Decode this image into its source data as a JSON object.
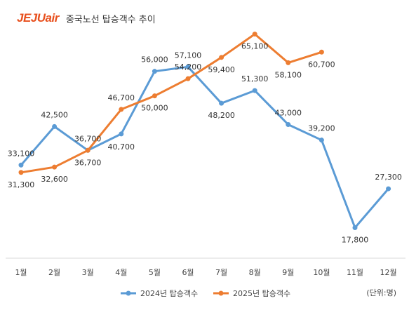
{
  "header": {
    "logo_text": "JEJUair",
    "title": "중국노선 탑승객수 추이"
  },
  "unit_note": "(단위:명)",
  "colors": {
    "logo": "#e8501e",
    "series_2024": "#5b9bd5",
    "series_2025": "#ed7d31",
    "label_text": "#333333",
    "axis_line": "#d9d9d9"
  },
  "chart_data": {
    "type": "line",
    "title": "중국노선 탑승객수 추이",
    "categories": [
      "1월",
      "2월",
      "3월",
      "4월",
      "5월",
      "6월",
      "7월",
      "8월",
      "9월",
      "10월",
      "11월",
      "12월"
    ],
    "series": [
      {
        "name": "2024년 탑승객수",
        "values": [
          33100,
          42500,
          36700,
          40700,
          56000,
          57100,
          48200,
          51300,
          43000,
          39200,
          17800,
          27300
        ],
        "labels": [
          "33,100",
          "42,500",
          "36,700",
          "40,700",
          "56,000",
          "57,100",
          "48,200",
          "51,300",
          "43,000",
          "39,200",
          "17,800",
          "27,300"
        ]
      },
      {
        "name": "2025년 탑승객수",
        "values": [
          31300,
          32600,
          36700,
          46700,
          50000,
          54200,
          59400,
          65100,
          58100,
          60700,
          null,
          null
        ],
        "labels": [
          "31,300",
          "32,600",
          "36,700",
          "46,700",
          "50,000",
          "54,200",
          "59,400",
          "65,100",
          "58,100",
          "60,700",
          null,
          null
        ]
      }
    ],
    "ylim": [
      10000,
      70000
    ],
    "grid": false,
    "legend_position": "bottom",
    "xlabel": "",
    "ylabel": ""
  }
}
